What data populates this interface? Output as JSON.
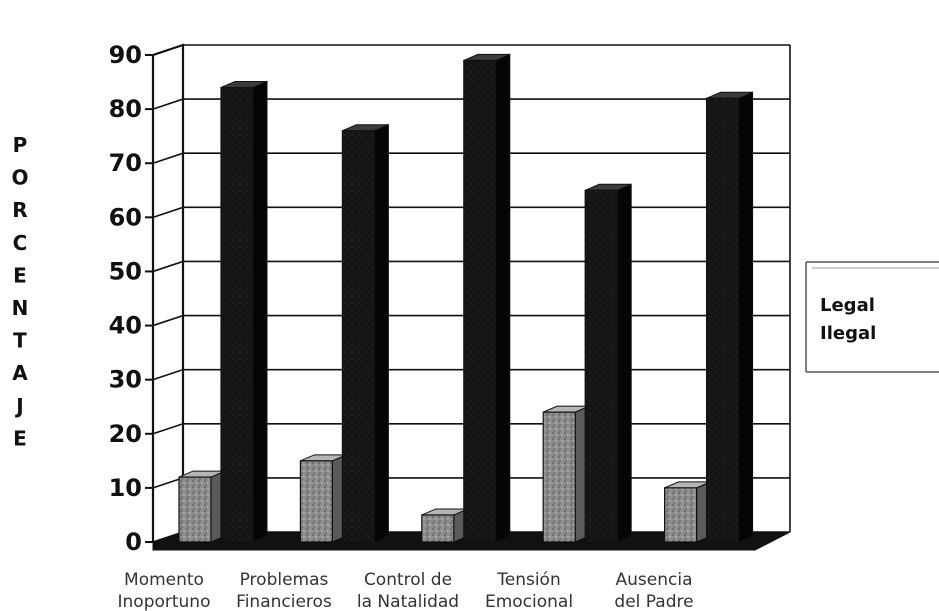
{
  "chart_data": {
    "type": "bar",
    "title": "",
    "xlabel": "",
    "ylabel": "PORCENTAJE",
    "categories": [
      [
        "Momento",
        "Inoportuno"
      ],
      [
        "Problemas",
        "Financieros"
      ],
      [
        "Control de",
        "la Natalidad"
      ],
      [
        "Tensión",
        "Emocional"
      ],
      [
        "Ausencia",
        "del Padre"
      ]
    ],
    "series": [
      {
        "name": "Legal",
        "values": [
          12,
          15,
          5,
          24,
          10
        ],
        "color": "#8a8a8a"
      },
      {
        "name": "Ilegal",
        "values": [
          84,
          76,
          89,
          65,
          82
        ],
        "color": "#151515"
      }
    ],
    "ylim": [
      0,
      90
    ],
    "yticks": [
      0,
      10,
      20,
      30,
      40,
      50,
      60,
      70,
      80,
      90
    ],
    "grid": true,
    "legend_position": "right",
    "style": "3d"
  }
}
